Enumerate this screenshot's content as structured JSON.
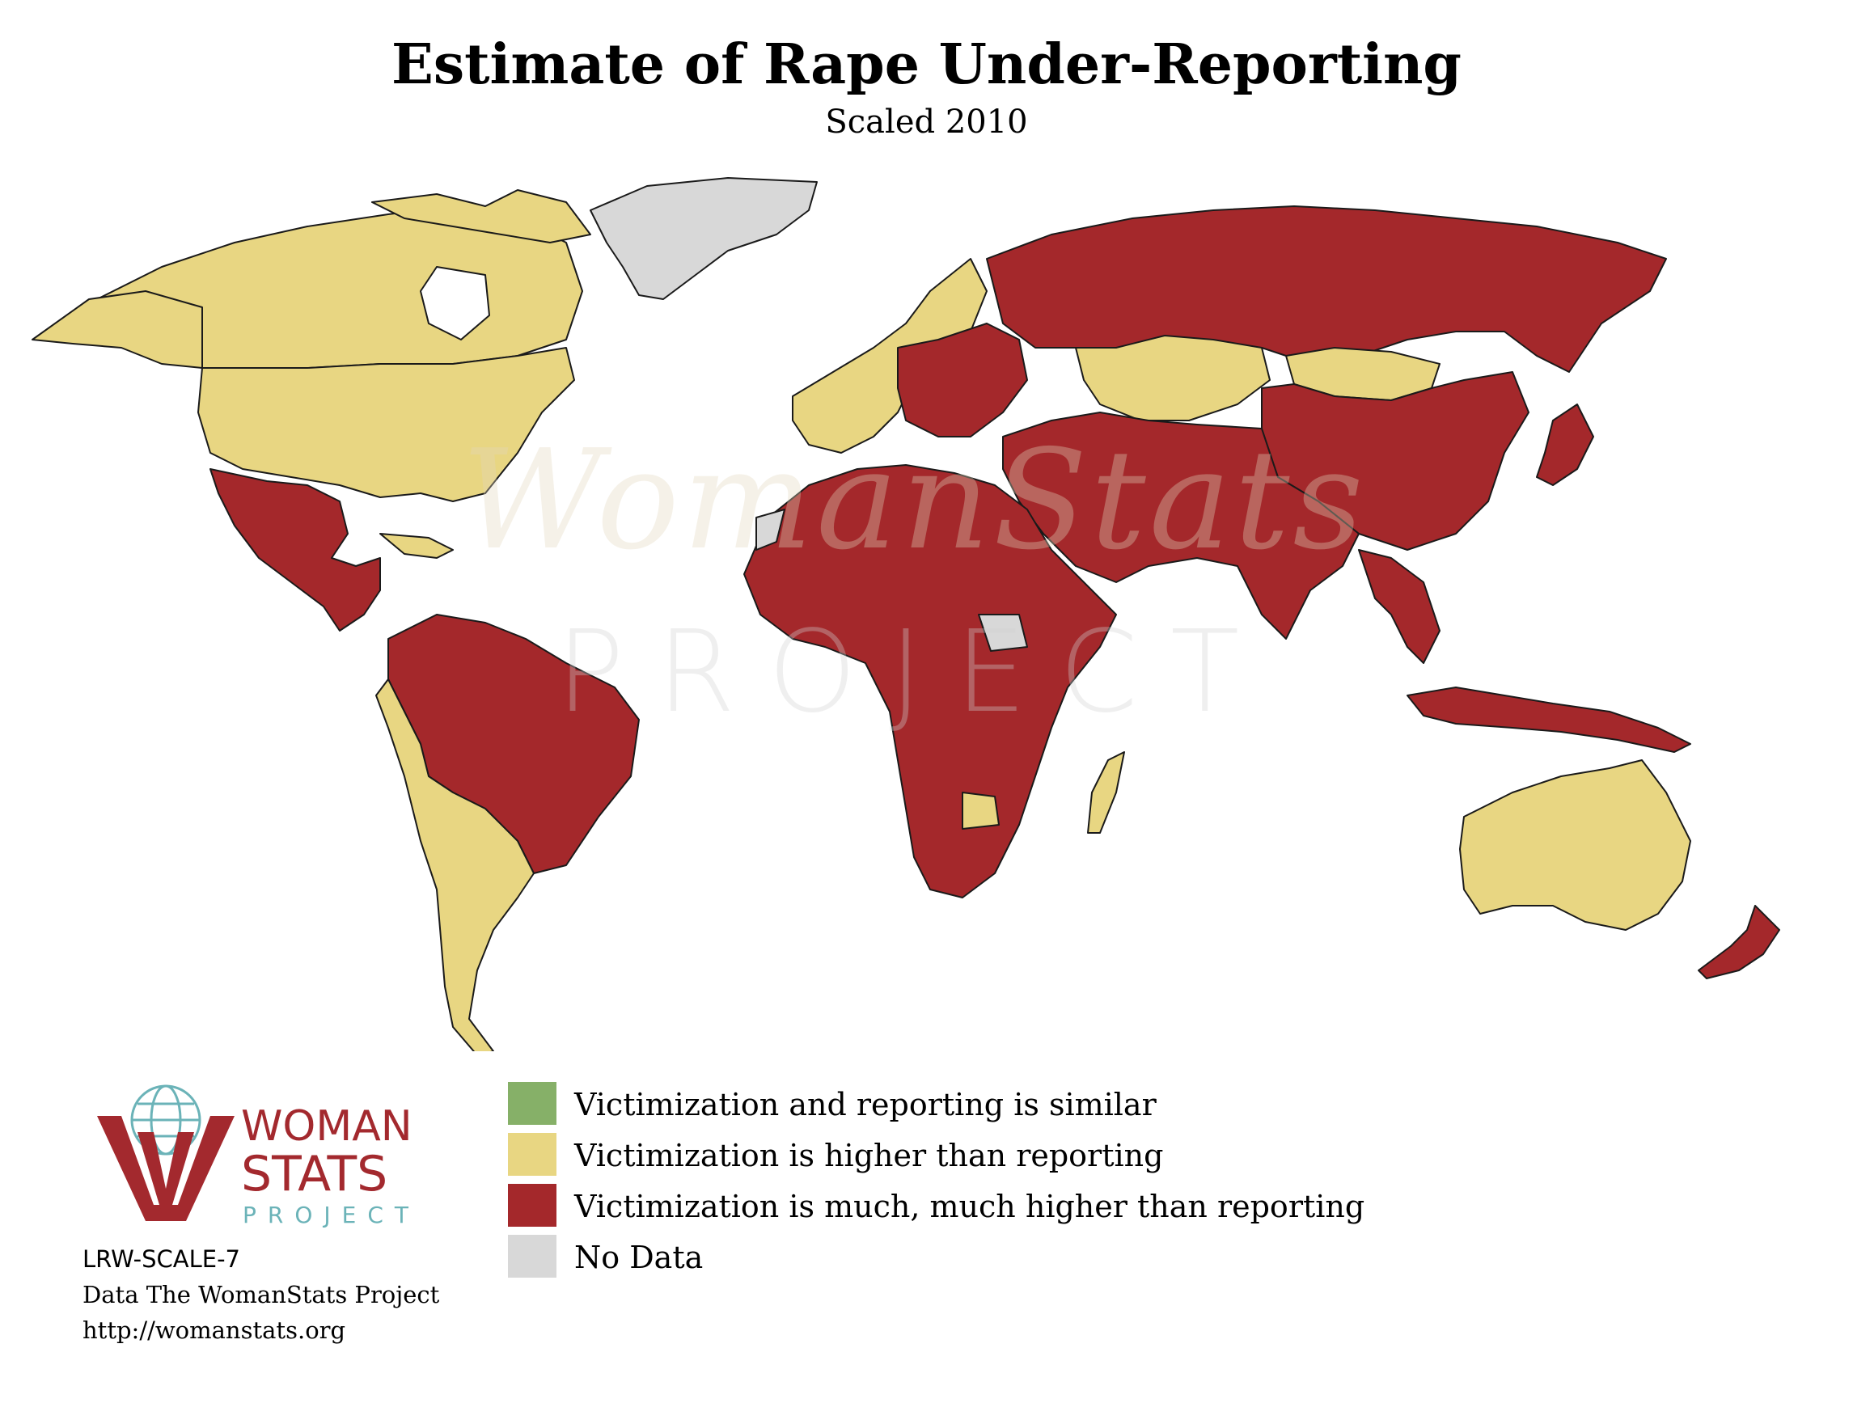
{
  "title": "Estimate of Rape Under-Reporting",
  "subtitle": "Scaled 2010",
  "colors": {
    "similar": "#86b068",
    "higher": "#e8d682",
    "much_higher": "#a4282b",
    "no_data": "#d8d8d8",
    "border": "#1a1a1a",
    "water": "#ffffff",
    "logo_red": "#a3292e",
    "logo_teal": "#6bb3b8"
  },
  "legend": [
    {
      "category": "similar",
      "label": "Victimization and reporting is similar"
    },
    {
      "category": "higher",
      "label": "Victimization is higher than reporting"
    },
    {
      "category": "much_higher",
      "label": "Victimization is much, much higher than reporting"
    },
    {
      "category": "no_data",
      "label": "No Data"
    }
  ],
  "logo": {
    "line1": "WOMAN",
    "line2": "STATS",
    "line3": "PROJECT"
  },
  "watermark": {
    "top": "WomanStats",
    "bottom": "PROJECT"
  },
  "footer": {
    "code": "LRW-SCALE-7",
    "source": "Data The WomanStats Project",
    "url": "http://womanstats.org"
  },
  "map_regions": [
    {
      "name": "Canada",
      "category": "higher"
    },
    {
      "name": "United States",
      "category": "higher"
    },
    {
      "name": "Greenland",
      "category": "no_data"
    },
    {
      "name": "Mexico & Central America",
      "category": "much_higher"
    },
    {
      "name": "Caribbean",
      "category": "higher"
    },
    {
      "name": "Northern South America & Brazil",
      "category": "much_higher"
    },
    {
      "name": "Andean & Southern Cone",
      "category": "higher"
    },
    {
      "name": "Western Europe",
      "category": "higher"
    },
    {
      "name": "Eastern Europe",
      "category": "much_higher"
    },
    {
      "name": "Russia",
      "category": "much_higher"
    },
    {
      "name": "Kazakhstan & Central Asia",
      "category": "higher"
    },
    {
      "name": "Mongolia",
      "category": "higher"
    },
    {
      "name": "China",
      "category": "much_higher"
    },
    {
      "name": "South Asia & Middle East",
      "category": "much_higher"
    },
    {
      "name": "Africa",
      "category": "much_higher"
    },
    {
      "name": "Western Sahara",
      "category": "no_data"
    },
    {
      "name": "South Sudan",
      "category": "no_data"
    },
    {
      "name": "Southeast Asia",
      "category": "much_higher"
    },
    {
      "name": "Australia",
      "category": "higher"
    },
    {
      "name": "New Zealand",
      "category": "much_higher"
    },
    {
      "name": "Japan",
      "category": "much_higher"
    },
    {
      "name": "Madagascar",
      "category": "higher"
    }
  ]
}
